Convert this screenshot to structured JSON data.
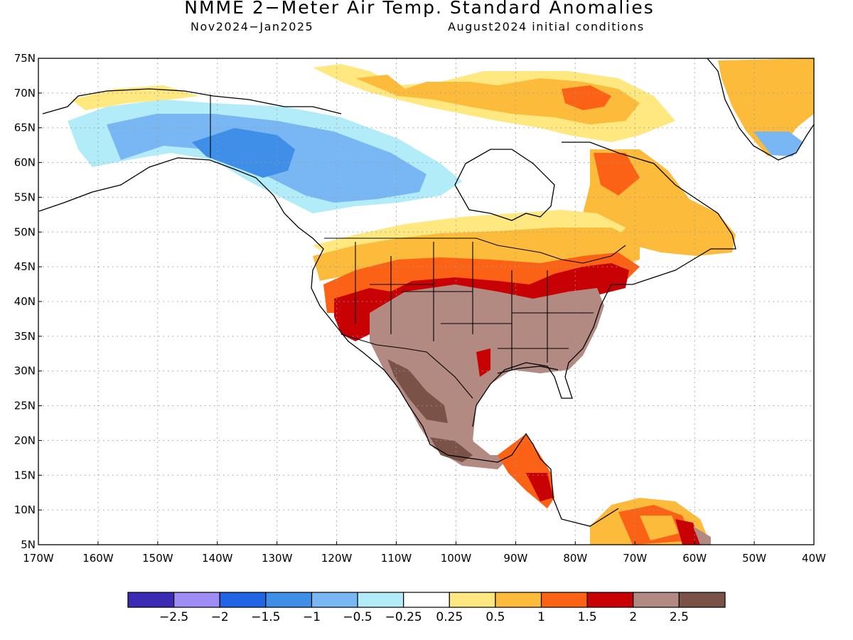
{
  "header": {
    "title": "NMME 2−Meter Air Temp. Standard Anomalies",
    "period": "Nov2024−Jan2025",
    "init": "August2024 initial conditions"
  },
  "axes": {
    "lat_labels": [
      "75N",
      "70N",
      "65N",
      "60N",
      "55N",
      "50N",
      "45N",
      "40N",
      "35N",
      "30N",
      "25N",
      "20N",
      "15N",
      "10N",
      "5N"
    ],
    "lon_labels": [
      "170W",
      "160W",
      "150W",
      "140W",
      "130W",
      "120W",
      "110W",
      "100W",
      "90W",
      "80W",
      "70W",
      "60W",
      "50W",
      "40W"
    ]
  },
  "colorbar": {
    "colors": [
      "#3a2bb2",
      "#a08cf5",
      "#2165e6",
      "#3f8ee8",
      "#79b7f4",
      "#b2ecf8",
      "#ffffff",
      "#ffe880",
      "#fdbb3c",
      "#fb6216",
      "#c80204",
      "#b38a81",
      "#7a5247"
    ],
    "labels": [
      "−2.5",
      "−2",
      "−1.5",
      "−1",
      "−0.5",
      "−0.25",
      "0.25",
      "0.5",
      "1",
      "1.5",
      "2",
      "2.5"
    ]
  },
  "map_colors": {
    "land_outline": "#000000",
    "grid": "#9a9a9a"
  }
}
